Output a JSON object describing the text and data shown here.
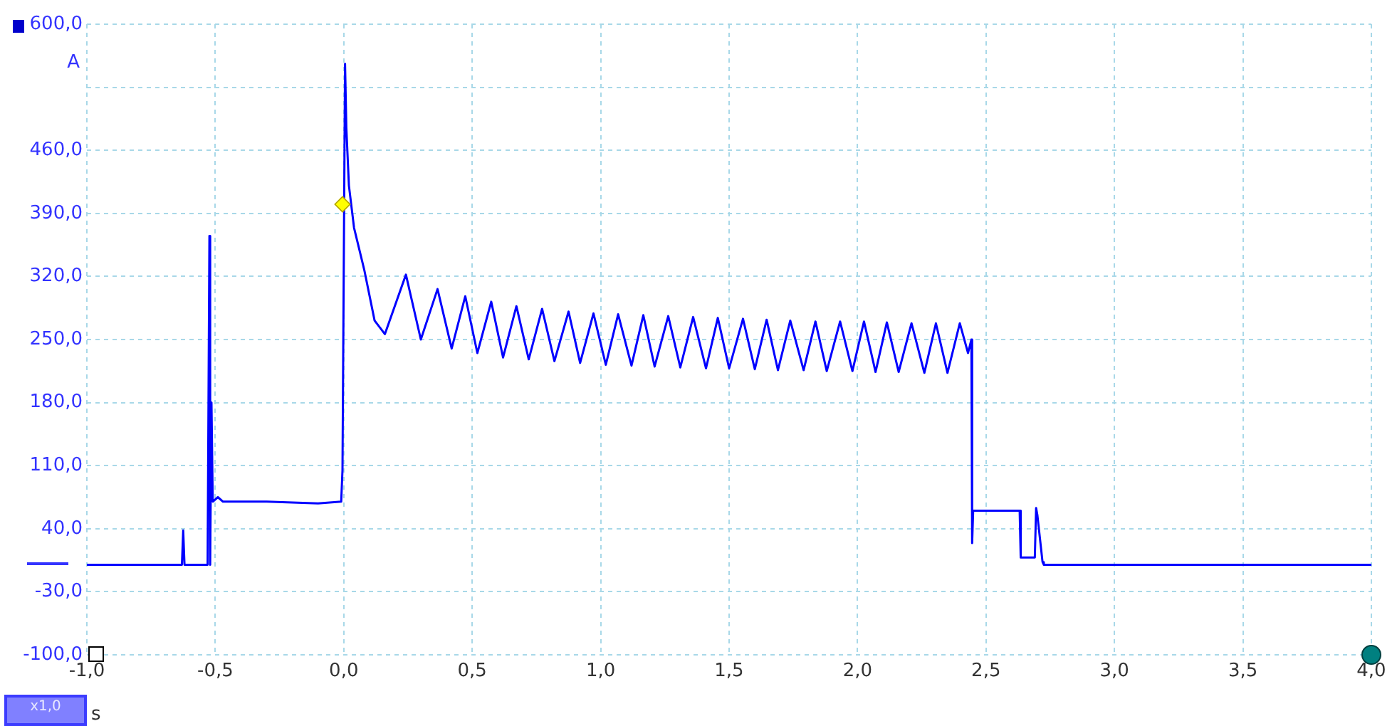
{
  "chart_data": {
    "type": "line",
    "xlabel": "s",
    "ylabel": "A",
    "annotations": [
      "x1,0"
    ],
    "xlim": [
      -1,
      4
    ],
    "xticks": [
      {
        "value": -1,
        "label": "-1,0"
      },
      {
        "value": -0.5,
        "label": "-0,5"
      },
      {
        "value": 0,
        "label": "0,0"
      },
      {
        "value": 0.5,
        "label": "0,5"
      },
      {
        "value": 1,
        "label": "1,0"
      },
      {
        "value": 1.5,
        "label": "1,5"
      },
      {
        "value": 2,
        "label": "2,0"
      },
      {
        "value": 2.5,
        "label": "2,5"
      },
      {
        "value": 3,
        "label": "3,0"
      },
      {
        "value": 3.5,
        "label": "3,5"
      },
      {
        "value": 4,
        "label": "4,0"
      }
    ],
    "ylim": [
      -100,
      600
    ],
    "yticks": [
      {
        "value": -100,
        "label": "-100,0"
      },
      {
        "value": -30,
        "label": "-30,0"
      },
      {
        "value": 40,
        "label": "40,0"
      },
      {
        "value": 110,
        "label": "110,0"
      },
      {
        "value": 180,
        "label": "180,0"
      },
      {
        "value": 250,
        "label": "250,0"
      },
      {
        "value": 320,
        "label": "320,0"
      },
      {
        "value": 390,
        "label": "390,0"
      },
      {
        "value": 460,
        "label": "460,0"
      },
      {
        "value": 530,
        "label": null
      },
      {
        "value": 600,
        "label": "600,0"
      }
    ],
    "grid": true,
    "legend": false,
    "marker": "none",
    "line_style": "solid",
    "series": [
      {
        "color": "#0000ff",
        "x": [
          -1,
          -0.63,
          -0.625,
          -0.62,
          -0.615,
          -0.53,
          -0.523,
          -0.52,
          -0.515,
          -0.51,
          -0.49,
          -0.47,
          -0.3,
          -0.1,
          -0.01,
          -0.005,
          0.005,
          0.01,
          0.02,
          0.04,
          0.08,
          0.12,
          0.16,
          0.242,
          0.3,
          0.365,
          0.42,
          0.473,
          0.52,
          0.574,
          0.62,
          0.672,
          0.72,
          0.772,
          0.82,
          0.875,
          0.92,
          0.972,
          1.02,
          1.068,
          1.12,
          1.166,
          1.21,
          1.263,
          1.31,
          1.36,
          1.41,
          1.456,
          1.5,
          1.554,
          1.6,
          1.646,
          1.69,
          1.738,
          1.79,
          1.836,
          1.88,
          1.932,
          1.98,
          2.025,
          2.07,
          2.114,
          2.16,
          2.21,
          2.26,
          2.305,
          2.35,
          2.398,
          2.43,
          2.443,
          2.446,
          2.45,
          2.5,
          2.6,
          2.631,
          2.635,
          2.69,
          2.695,
          2.7,
          2.72,
          2.725,
          2.8,
          3,
          3.5,
          4
        ],
        "values": [
          0,
          0,
          38,
          0,
          0,
          0,
          365,
          0,
          180,
          70,
          75,
          70,
          70,
          68,
          70,
          105,
          556,
          485,
          421,
          374,
          327,
          271,
          256,
          322,
          250,
          306,
          240,
          298,
          235,
          292,
          230,
          287,
          228,
          284,
          226,
          281,
          224,
          279,
          222,
          278,
          221,
          277,
          220,
          276,
          219,
          275,
          218,
          274,
          218,
          273,
          217,
          272,
          216,
          271,
          216,
          270,
          215,
          270,
          215,
          270,
          214,
          269,
          214,
          268,
          213,
          268,
          213,
          268,
          235,
          250,
          24,
          60,
          60,
          60,
          60,
          8,
          8,
          63,
          55,
          3,
          0,
          0,
          0,
          0,
          0
        ]
      }
    ]
  }
}
